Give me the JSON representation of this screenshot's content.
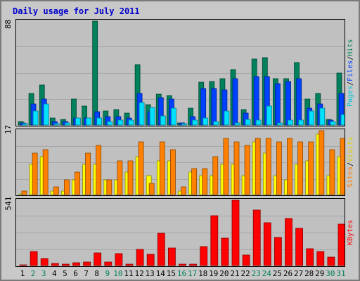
{
  "title": "Daily usage for July 2011",
  "colors": {
    "hits": "#00805c",
    "files": "#0040ff",
    "pages": "#00e0ff",
    "visits": "#ffff00",
    "sites": "#ff8000",
    "kbytes": "#ff0000",
    "weekday_label": "#000000",
    "weekend_label": "#00805c"
  },
  "panels": {
    "top": {
      "max_label": "88",
      "legend": [
        "Pages",
        "Files",
        "Hits"
      ],
      "legend_sep": "/"
    },
    "middle": {
      "max_label": "17",
      "legend": [
        "Sites",
        "Visits"
      ],
      "legend_sep": "/"
    },
    "bottom": {
      "max_label": "541",
      "legend": [
        "KBytes"
      ]
    }
  },
  "chart_data": {
    "type": "bar",
    "title": "Daily usage for July 2011",
    "categories": [
      "1",
      "2",
      "3",
      "4",
      "5",
      "6",
      "7",
      "8",
      "9",
      "10",
      "11",
      "12",
      "13",
      "14",
      "15",
      "16",
      "17",
      "18",
      "19",
      "20",
      "21",
      "22",
      "23",
      "24",
      "25",
      "26",
      "27",
      "28",
      "29",
      "30",
      "31"
    ],
    "weekend_days": [
      "2",
      "3",
      "9",
      "10",
      "16",
      "17",
      "23",
      "24",
      "30",
      "31"
    ],
    "series": [
      {
        "name": "Hits",
        "panel": "top",
        "values": [
          3,
          27,
          34,
          6,
          5,
          22,
          16,
          88,
          12,
          13,
          10,
          51,
          17,
          26,
          25,
          2,
          14,
          36,
          37,
          39,
          47,
          13,
          56,
          57,
          39,
          39,
          53,
          22,
          27,
          5,
          44
        ],
        "ylim": [
          0,
          88
        ]
      },
      {
        "name": "Files",
        "panel": "top",
        "values": [
          2,
          18,
          22,
          3,
          3,
          6,
          6,
          11,
          7,
          7,
          6,
          27,
          11,
          23,
          22,
          2,
          7,
          31,
          31,
          30,
          39,
          10,
          41,
          41,
          35,
          37,
          39,
          14,
          18,
          4,
          27
        ],
        "ylim": [
          0,
          88
        ]
      },
      {
        "name": "Pages",
        "panel": "top",
        "values": [
          1,
          12,
          18,
          1,
          2,
          6,
          6,
          6,
          3,
          4,
          4,
          19,
          15,
          8,
          14,
          1,
          4,
          6,
          3,
          12,
          2,
          5,
          4,
          16,
          2,
          4,
          4,
          12,
          14,
          3,
          9
        ],
        "ylim": [
          0,
          88
        ]
      },
      {
        "name": "Visits",
        "panel": "middle",
        "values": [
          0,
          8,
          10,
          1,
          1,
          4,
          8,
          8,
          4,
          4,
          6,
          10,
          5,
          9,
          9,
          1,
          6,
          5,
          5,
          8,
          8,
          5,
          14,
          11,
          5,
          4,
          8,
          9,
          16,
          5,
          10
        ],
        "ylim": [
          0,
          17
        ]
      },
      {
        "name": "Sites",
        "panel": "middle",
        "values": [
          1,
          11,
          12,
          2,
          4,
          6,
          11,
          13,
          4,
          9,
          9,
          14,
          3,
          14,
          12,
          2,
          7,
          7,
          10,
          15,
          14,
          13,
          15,
          15,
          14,
          15,
          14,
          14,
          17,
          12,
          15
        ],
        "ylim": [
          0,
          17
        ]
      },
      {
        "name": "KBytes",
        "panel": "bottom",
        "values": [
          8,
          114,
          61,
          19,
          11,
          23,
          28,
          103,
          31,
          99,
          9,
          136,
          93,
          266,
          146,
          9,
          11,
          156,
          411,
          224,
          541,
          89,
          459,
          355,
          233,
          388,
          307,
          139,
          115,
          71,
          345
        ],
        "ylim": [
          0,
          541
        ]
      }
    ]
  }
}
